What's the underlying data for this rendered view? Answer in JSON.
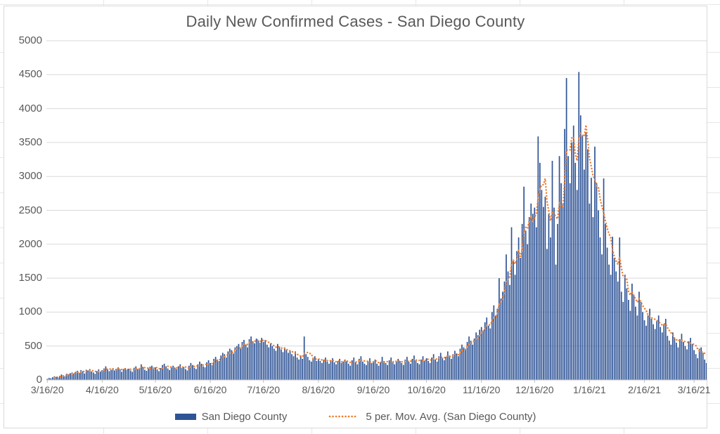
{
  "title": "Daily New Confirmed Cases - San Diego County",
  "colors": {
    "bar": "#2F5496",
    "moving_avg": "#ED7D31",
    "text": "#595959",
    "gridline": "#D9D9D9",
    "axis": "#BFBFBF"
  },
  "legend": {
    "series_label": "San Diego County",
    "moving_avg_label": "5 per. Mov. Avg. (San Diego County)"
  },
  "chart_data": {
    "type": "bar",
    "title": "Daily New Confirmed Cases - San Diego County",
    "xlabel": "",
    "ylabel": "",
    "ylim": [
      0,
      5000
    ],
    "y_ticks": [
      0,
      500,
      1000,
      1500,
      2000,
      2500,
      3000,
      3500,
      4000,
      4500,
      5000
    ],
    "grid": "horizontal",
    "legend_position": "bottom",
    "x_unit": "day",
    "x_start": "3/16/20",
    "x_tick_labels": [
      "3/16/20",
      "4/16/20",
      "5/16/20",
      "6/16/20",
      "7/16/20",
      "8/16/20",
      "9/16/20",
      "10/16/20",
      "11/16/20",
      "12/16/20",
      "1/16/21",
      "2/16/21",
      "3/16/21"
    ],
    "x_tick_day_offsets": [
      0,
      31,
      61,
      92,
      122,
      153,
      184,
      214,
      245,
      275,
      306,
      337,
      365
    ],
    "series": [
      {
        "name": "San Diego County",
        "type": "bar",
        "values": [
          15,
          30,
          25,
          40,
          55,
          45,
          35,
          60,
          80,
          70,
          55,
          90,
          85,
          100,
          110,
          95,
          120,
          135,
          105,
          145,
          130,
          95,
          150,
          140,
          160,
          125,
          110,
          90,
          130,
          155,
          120,
          145,
          170,
          200,
          160,
          130,
          150,
          175,
          140,
          165,
          185,
          155,
          120,
          160,
          175,
          150,
          165,
          140,
          120,
          180,
          200,
          160,
          175,
          230,
          190,
          150,
          135,
          170,
          195,
          210,
          160,
          185,
          155,
          130,
          175,
          220,
          240,
          200,
          170,
          145,
          190,
          210,
          180,
          160,
          200,
          230,
          175,
          190,
          160,
          140,
          210,
          250,
          220,
          180,
          160,
          230,
          270,
          240,
          200,
          185,
          260,
          290,
          250,
          220,
          310,
          340,
          300,
          280,
          360,
          400,
          380,
          330,
          420,
          460,
          440,
          390,
          480,
          500,
          530,
          460,
          560,
          590,
          520,
          480,
          600,
          640,
          570,
          540,
          610,
          580,
          550,
          620,
          560,
          590,
          520,
          480,
          540,
          500,
          460,
          430,
          530,
          490,
          450,
          410,
          470,
          440,
          400,
          430,
          380,
          350,
          420,
          330,
          300,
          360,
          310,
          640,
          380,
          340,
          290,
          270,
          320,
          350,
          280,
          310,
          280,
          250,
          300,
          330,
          270,
          240,
          290,
          320,
          260,
          230,
          280,
          310,
          250,
          270,
          300,
          280,
          240,
          210,
          290,
          330,
          260,
          230,
          310,
          350,
          270,
          240,
          220,
          280,
          320,
          250,
          270,
          300,
          240,
          210,
          260,
          340,
          280,
          250,
          220,
          290,
          330,
          260,
          230,
          270,
          310,
          280,
          250,
          220,
          300,
          340,
          270,
          240,
          310,
          360,
          290,
          250,
          230,
          300,
          350,
          280,
          320,
          280,
          250,
          330,
          380,
          300,
          270,
          350,
          400,
          320,
          290,
          340,
          420,
          360,
          310,
          380,
          430,
          390,
          350,
          460,
          520,
          480,
          440,
          560,
          640,
          580,
          520,
          610,
          700,
          660,
          740,
          780,
          720,
          850,
          920,
          800,
          760,
          1000,
          1100,
          950,
          1050,
          1500,
          1200,
          1300,
          1450,
          1850,
          1600,
          1400,
          2250,
          1750,
          1550,
          1900,
          2100,
          1800,
          2300,
          2850,
          2200,
          2000,
          2400,
          2600,
          2450,
          2540,
          2250,
          3590,
          3200,
          2800,
          2550,
          2700,
          1930,
          2450,
          2100,
          3230,
          2540,
          1700,
          2300,
          3300,
          2900,
          2600,
          3700,
          4450,
          3300,
          2900,
          3500,
          3750,
          3200,
          2800,
          4540,
          3900,
          3600,
          3100,
          3650,
          3400,
          2600,
          2980,
          2400,
          3440,
          2900,
          2500,
          2100,
          1850,
          2970,
          2300,
          1950,
          1700,
          1550,
          2110,
          1800,
          1600,
          1450,
          2100,
          1300,
          1150,
          1550,
          1350,
          1180,
          1020,
          1420,
          1250,
          1080,
          950,
          1300,
          1150,
          1000,
          880,
          800,
          950,
          1050,
          900,
          820,
          750,
          870,
          950,
          780,
          700,
          820,
          900,
          650,
          580,
          520,
          700,
          620,
          550,
          480,
          600,
          680,
          560,
          500,
          450,
          570,
          620,
          530,
          440,
          380,
          320,
          460,
          480,
          400,
          300,
          250
        ]
      },
      {
        "name": "5 per. Mov. Avg. (San Diego County)",
        "type": "moving_average",
        "window": 5,
        "derived_from": "San Diego County"
      }
    ]
  }
}
